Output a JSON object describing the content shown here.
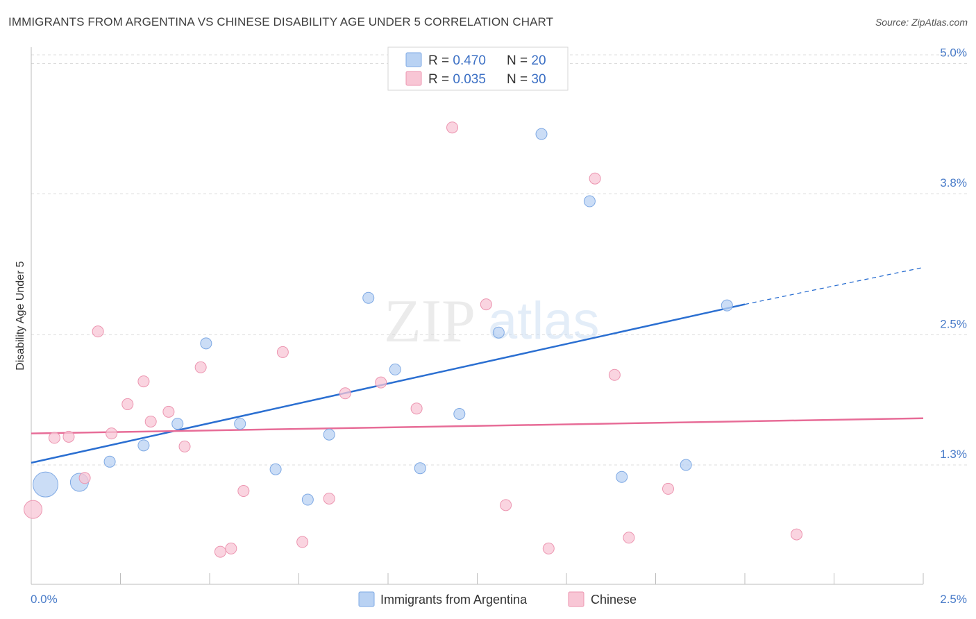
{
  "header": {
    "title": "IMMIGRANTS FROM ARGENTINA VS CHINESE DISABILITY AGE UNDER 5 CORRELATION CHART",
    "source": "Source: ZipAtlas.com"
  },
  "watermark": {
    "zip": "ZIP",
    "atlas": "atlas"
  },
  "colors": {
    "blue_fill": "#b9d2f3",
    "blue_stroke": "#7ea9e4",
    "blue_line": "#2b6fd1",
    "pink_fill": "#f8c6d5",
    "pink_stroke": "#ec95b0",
    "pink_line": "#e76c97",
    "grid": "#dcdcdc",
    "tick_text": "#4a7cc9"
  },
  "chart_data": {
    "type": "scatter",
    "title": "IMMIGRANTS FROM ARGENTINA VS CHINESE DISABILITY AGE UNDER 5 CORRELATION CHART",
    "xlabel": "",
    "ylabel": "Disability Age Under 5",
    "xlim": [
      0,
      2.5
    ],
    "ylim": [
      0.2,
      5.15
    ],
    "x_tick_labels": [
      "0.0%",
      "2.5%"
    ],
    "y_ticks": [
      {
        "value": 1.3,
        "label": "1.3%"
      },
      {
        "value": 2.5,
        "label": "2.5%"
      },
      {
        "value": 3.8,
        "label": "3.8%"
      },
      {
        "value": 5.0,
        "label": "5.0%"
      }
    ],
    "legend": {
      "position": "top-center",
      "entries": [
        {
          "series": "Immigrants from Argentina",
          "r_label": "R = ",
          "r_value": "0.470",
          "n_label": "N = ",
          "n_value": "20"
        },
        {
          "series": "Chinese",
          "r_label": "R = ",
          "r_value": "0.035",
          "n_label": "N = ",
          "n_value": "30"
        }
      ]
    },
    "series": [
      {
        "name": "Immigrants from Argentina",
        "color": "blue",
        "points": [
          {
            "x": 0.04,
            "y": 1.12,
            "size": "large"
          },
          {
            "x": 0.135,
            "y": 1.14,
            "size": "medium"
          },
          {
            "x": 0.22,
            "y": 1.33
          },
          {
            "x": 0.315,
            "y": 1.48
          },
          {
            "x": 0.41,
            "y": 1.68
          },
          {
            "x": 0.49,
            "y": 2.42
          },
          {
            "x": 0.585,
            "y": 1.68
          },
          {
            "x": 0.685,
            "y": 1.26
          },
          {
            "x": 0.775,
            "y": 0.98
          },
          {
            "x": 0.835,
            "y": 1.58
          },
          {
            "x": 0.945,
            "y": 2.84
          },
          {
            "x": 1.02,
            "y": 2.18
          },
          {
            "x": 1.09,
            "y": 1.27
          },
          {
            "x": 1.2,
            "y": 1.77
          },
          {
            "x": 1.31,
            "y": 2.52
          },
          {
            "x": 1.43,
            "y": 4.35
          },
          {
            "x": 1.565,
            "y": 3.73
          },
          {
            "x": 1.655,
            "y": 1.19
          },
          {
            "x": 1.835,
            "y": 1.3
          },
          {
            "x": 1.95,
            "y": 2.77
          }
        ]
      },
      {
        "name": "Chinese",
        "color": "pink",
        "points": [
          {
            "x": 0.005,
            "y": 0.89,
            "size": "medium"
          },
          {
            "x": 0.065,
            "y": 1.55
          },
          {
            "x": 0.105,
            "y": 1.56
          },
          {
            "x": 0.15,
            "y": 1.18
          },
          {
            "x": 0.187,
            "y": 2.53
          },
          {
            "x": 0.225,
            "y": 1.59
          },
          {
            "x": 0.27,
            "y": 1.86
          },
          {
            "x": 0.315,
            "y": 2.07
          },
          {
            "x": 0.335,
            "y": 1.7
          },
          {
            "x": 0.385,
            "y": 1.79
          },
          {
            "x": 0.43,
            "y": 1.47
          },
          {
            "x": 0.475,
            "y": 2.2
          },
          {
            "x": 0.53,
            "y": 0.5
          },
          {
            "x": 0.56,
            "y": 0.53
          },
          {
            "x": 0.595,
            "y": 1.06
          },
          {
            "x": 0.705,
            "y": 2.34
          },
          {
            "x": 0.76,
            "y": 0.59
          },
          {
            "x": 0.835,
            "y": 0.99
          },
          {
            "x": 0.88,
            "y": 1.96
          },
          {
            "x": 0.98,
            "y": 2.06
          },
          {
            "x": 1.08,
            "y": 1.82
          },
          {
            "x": 1.18,
            "y": 4.41
          },
          {
            "x": 1.275,
            "y": 2.78
          },
          {
            "x": 1.33,
            "y": 0.93
          },
          {
            "x": 1.45,
            "y": 0.53
          },
          {
            "x": 1.58,
            "y": 3.94
          },
          {
            "x": 1.635,
            "y": 2.13
          },
          {
            "x": 1.675,
            "y": 0.63
          },
          {
            "x": 1.785,
            "y": 1.08
          },
          {
            "x": 2.145,
            "y": 0.66
          }
        ]
      }
    ],
    "trend_lines": [
      {
        "series": "Immigrants from Argentina",
        "x1": 0.0,
        "y1": 1.32,
        "x2": 2.0,
        "y2": 2.78,
        "dashed_to_x": 2.5,
        "dashed_to_y": 3.12
      },
      {
        "series": "Chinese",
        "x1": 0.0,
        "y1": 1.59,
        "x2": 2.5,
        "y2": 1.73
      }
    ]
  }
}
